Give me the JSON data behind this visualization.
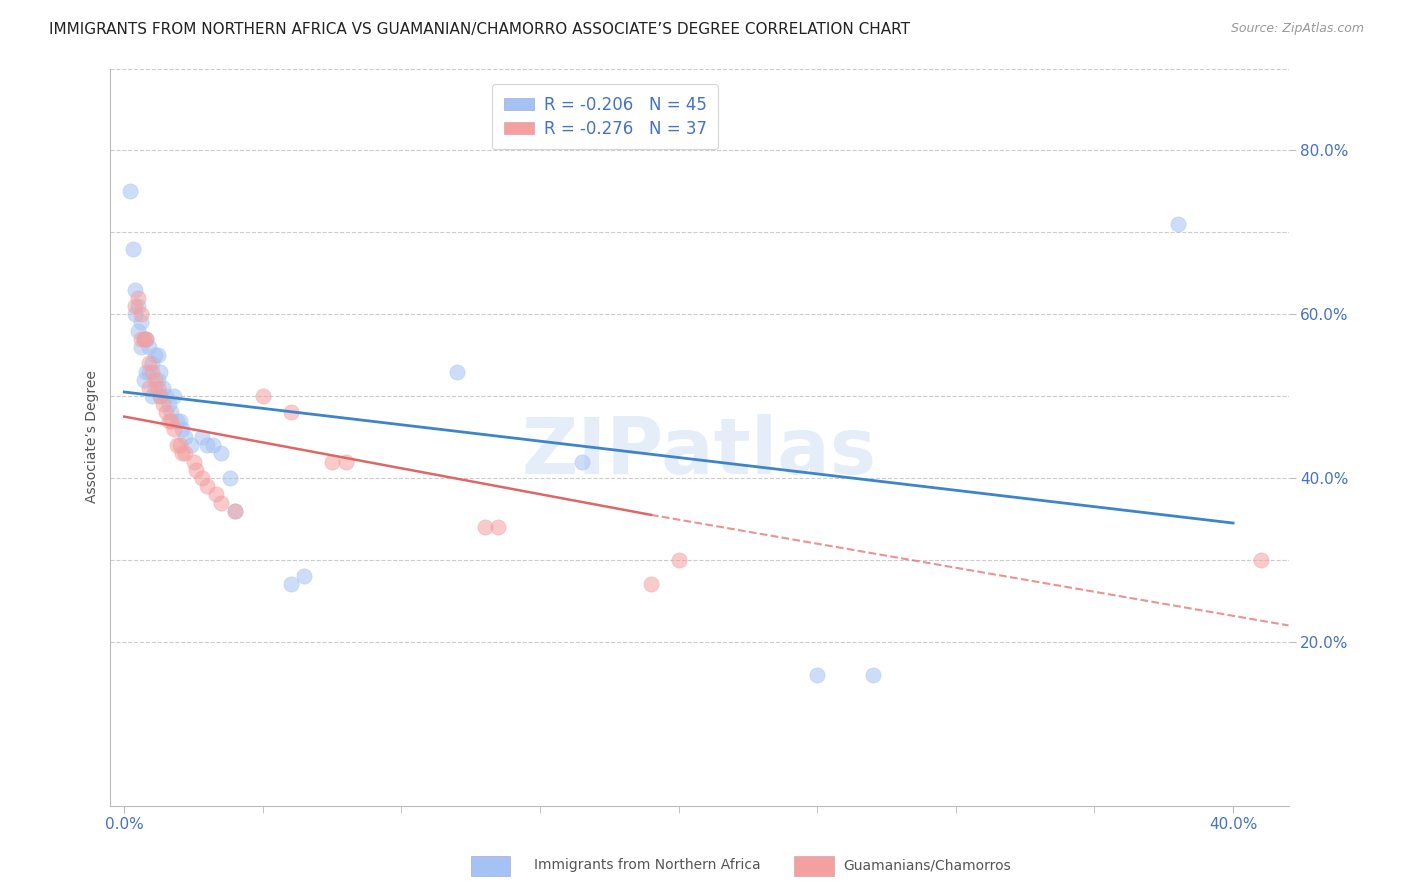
{
  "title": "IMMIGRANTS FROM NORTHERN AFRICA VS GUAMANIAN/CHAMORRO ASSOCIATE’S DEGREE CORRELATION CHART",
  "source": "Source: ZipAtlas.com",
  "ylabel": "Associate’s Degree",
  "watermark": "ZIPatlas",
  "xlim": [
    -0.005,
    0.42
  ],
  "ylim": [
    0.0,
    0.9
  ],
  "bottom_labels": [
    "Immigrants from Northern Africa",
    "Guamanians/Chamorros"
  ],
  "blue_scatter": [
    [
      0.002,
      0.75
    ],
    [
      0.003,
      0.68
    ],
    [
      0.004,
      0.6
    ],
    [
      0.004,
      0.63
    ],
    [
      0.005,
      0.61
    ],
    [
      0.005,
      0.58
    ],
    [
      0.006,
      0.59
    ],
    [
      0.006,
      0.56
    ],
    [
      0.007,
      0.57
    ],
    [
      0.007,
      0.52
    ],
    [
      0.008,
      0.57
    ],
    [
      0.008,
      0.53
    ],
    [
      0.009,
      0.56
    ],
    [
      0.009,
      0.53
    ],
    [
      0.01,
      0.54
    ],
    [
      0.01,
      0.5
    ],
    [
      0.011,
      0.55
    ],
    [
      0.011,
      0.51
    ],
    [
      0.012,
      0.55
    ],
    [
      0.012,
      0.52
    ],
    [
      0.013,
      0.53
    ],
    [
      0.013,
      0.5
    ],
    [
      0.014,
      0.51
    ],
    [
      0.015,
      0.5
    ],
    [
      0.016,
      0.49
    ],
    [
      0.017,
      0.48
    ],
    [
      0.018,
      0.5
    ],
    [
      0.019,
      0.47
    ],
    [
      0.02,
      0.47
    ],
    [
      0.021,
      0.46
    ],
    [
      0.022,
      0.45
    ],
    [
      0.024,
      0.44
    ],
    [
      0.028,
      0.45
    ],
    [
      0.03,
      0.44
    ],
    [
      0.032,
      0.44
    ],
    [
      0.035,
      0.43
    ],
    [
      0.038,
      0.4
    ],
    [
      0.04,
      0.36
    ],
    [
      0.06,
      0.27
    ],
    [
      0.065,
      0.28
    ],
    [
      0.12,
      0.53
    ],
    [
      0.165,
      0.42
    ],
    [
      0.25,
      0.16
    ],
    [
      0.27,
      0.16
    ],
    [
      0.38,
      0.71
    ]
  ],
  "pink_scatter": [
    [
      0.004,
      0.61
    ],
    [
      0.005,
      0.62
    ],
    [
      0.006,
      0.6
    ],
    [
      0.006,
      0.57
    ],
    [
      0.007,
      0.57
    ],
    [
      0.008,
      0.57
    ],
    [
      0.009,
      0.54
    ],
    [
      0.009,
      0.51
    ],
    [
      0.01,
      0.53
    ],
    [
      0.011,
      0.52
    ],
    [
      0.012,
      0.51
    ],
    [
      0.013,
      0.5
    ],
    [
      0.014,
      0.49
    ],
    [
      0.015,
      0.48
    ],
    [
      0.016,
      0.47
    ],
    [
      0.017,
      0.47
    ],
    [
      0.018,
      0.46
    ],
    [
      0.019,
      0.44
    ],
    [
      0.02,
      0.44
    ],
    [
      0.021,
      0.43
    ],
    [
      0.022,
      0.43
    ],
    [
      0.025,
      0.42
    ],
    [
      0.026,
      0.41
    ],
    [
      0.028,
      0.4
    ],
    [
      0.03,
      0.39
    ],
    [
      0.033,
      0.38
    ],
    [
      0.035,
      0.37
    ],
    [
      0.04,
      0.36
    ],
    [
      0.05,
      0.5
    ],
    [
      0.06,
      0.48
    ],
    [
      0.075,
      0.42
    ],
    [
      0.08,
      0.42
    ],
    [
      0.13,
      0.34
    ],
    [
      0.135,
      0.34
    ],
    [
      0.19,
      0.27
    ],
    [
      0.2,
      0.3
    ],
    [
      0.41,
      0.3
    ]
  ],
  "blue_line": {
    "x0": 0.0,
    "y0": 0.505,
    "x1": 0.4,
    "y1": 0.345
  },
  "pink_line_solid": {
    "x0": 0.0,
    "y0": 0.475,
    "x1": 0.19,
    "y1": 0.355
  },
  "pink_line_dashed": {
    "x0": 0.19,
    "y0": 0.355,
    "x1": 0.42,
    "y1": 0.22
  },
  "blue_scatter_color": "#a4c2f4",
  "pink_scatter_color": "#f4a0a0",
  "blue_line_color": "#3d85c8",
  "pink_line_color": "#e06666",
  "grid_color": "#cccccc",
  "axis_label_color": "#4472c4",
  "title_color": "#222222",
  "title_fontsize": 11,
  "axis_fontsize": 11,
  "scatter_alpha": 0.55,
  "scatter_size": 120
}
